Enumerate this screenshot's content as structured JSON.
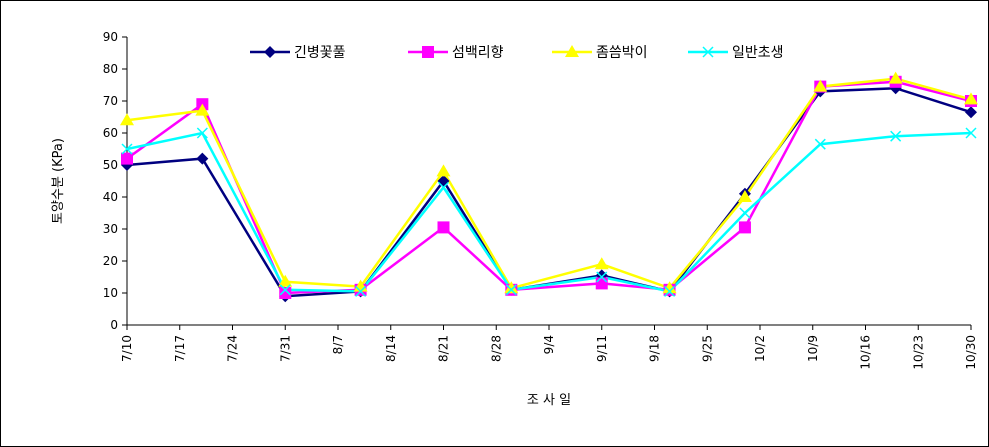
{
  "chart_data": {
    "type": "line",
    "y_label": "토양수분 (KPa)",
    "x_label": "조 사 일",
    "x": [
      "7/10",
      "7/20",
      "7/31",
      "8/10",
      "8/21",
      "8/30",
      "9/11",
      "9/20",
      "9/30",
      "10/10",
      "10/20",
      "10/30"
    ],
    "xlim": [
      "7/10",
      "10/30"
    ],
    "xticks": [
      "7/10",
      "7/17",
      "7/24",
      "7/31",
      "8/7",
      "8/14",
      "8/21",
      "8/28",
      "9/4",
      "9/11",
      "9/18",
      "9/25",
      "10/2",
      "10/9",
      "10/16",
      "10/23",
      "10/30"
    ],
    "ylim": [
      0,
      90
    ],
    "yticks": [
      0,
      10,
      20,
      30,
      40,
      50,
      60,
      70,
      80,
      90
    ],
    "grid": false,
    "legend": "top",
    "series": [
      {
        "name": "긴병꽃풀",
        "color": "#000080",
        "marker": "diamond",
        "values": [
          50,
          52,
          9,
          10.5,
          45,
          11,
          15.5,
          10.5,
          41,
          73,
          74,
          66.5
        ]
      },
      {
        "name": "섬백리향",
        "color": "#ff00ff",
        "marker": "square",
        "values": [
          52,
          69,
          10,
          11,
          30.5,
          11,
          13,
          11,
          30.5,
          74.5,
          76,
          70
        ]
      },
      {
        "name": "좀씀박이",
        "color": "#ffff00",
        "marker": "triangle",
        "values": [
          64,
          67,
          13.5,
          12,
          48,
          11.5,
          19,
          11.5,
          40,
          74.5,
          77,
          70.5
        ]
      },
      {
        "name": "일반초생",
        "color": "#00ffff",
        "marker": "x",
        "values": [
          55,
          60,
          11,
          10.5,
          43,
          11,
          15,
          10.5,
          35,
          56.5,
          59,
          60
        ]
      }
    ]
  }
}
